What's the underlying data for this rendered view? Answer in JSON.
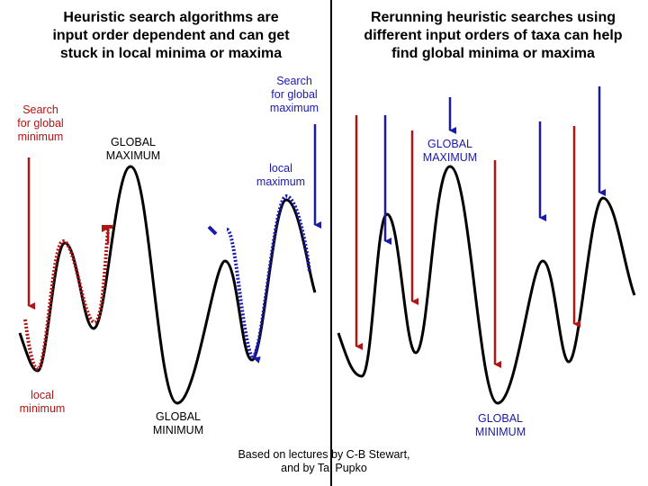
{
  "left": {
    "title": "Heuristic search algorithms are\ninput order dependent and can get\nstuck in local minima or maxima",
    "search_min_label": "Search\nfor global\nminimum",
    "local_min_label": "local\nminimum",
    "global_max_label": "GLOBAL\nMAXIMUM",
    "global_min_label": "GLOBAL\nMINIMUM",
    "search_max_label": "Search\nfor global\nmaximum",
    "local_max_label": "local\nmaximum"
  },
  "right": {
    "title": "Rerunning heuristic searches using\ndifferent input orders of taxa can help\nfind global minima or maxima",
    "global_max_label": "GLOBAL\nMAXIMUM",
    "global_min_label": "GLOBAL\nMINIMUM"
  },
  "credit": "Based on lectures by C-B Stewart,\nand by Tal Pupko",
  "colors": {
    "min_search": "#b01414",
    "max_search": "#1a1aa8",
    "curve": "#000000",
    "divider": "#000000"
  }
}
